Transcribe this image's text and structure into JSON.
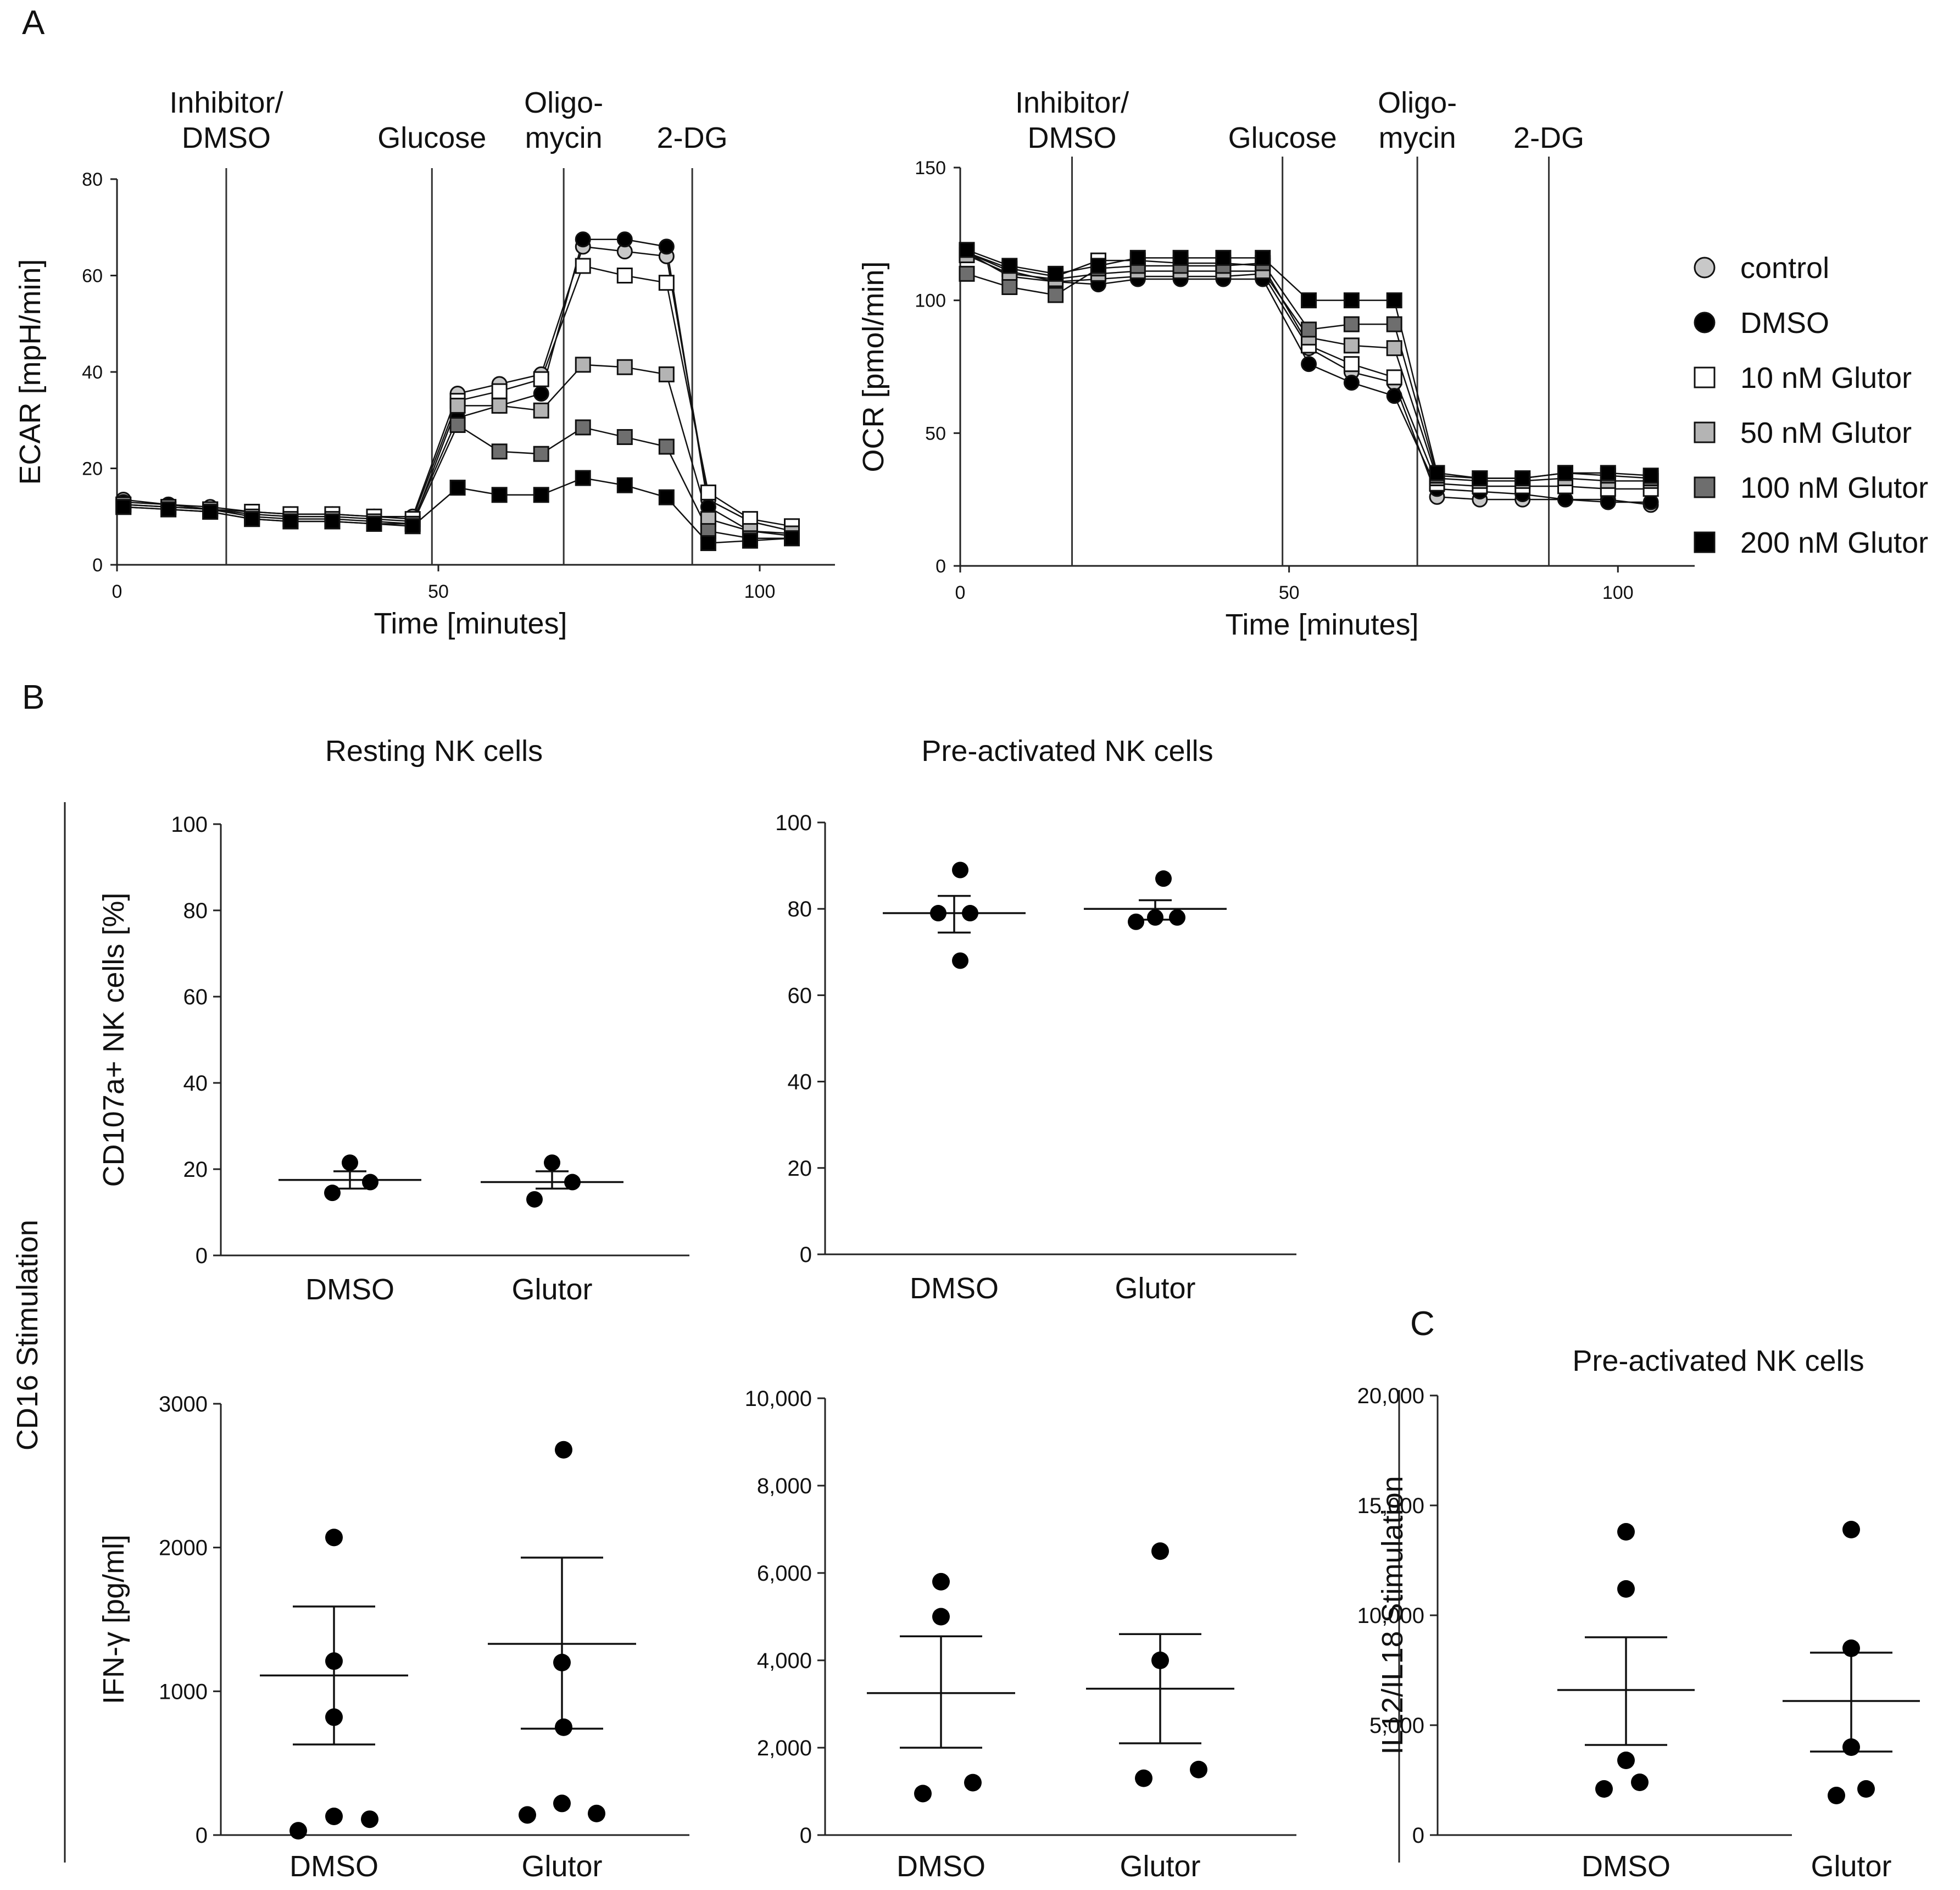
{
  "panel_labels": {
    "a": "A",
    "b": "B",
    "c": "C"
  },
  "side_labels": {
    "cd16": "CD16 Stimulation",
    "il12": "IL12/IL18 Stimulation"
  },
  "legend": [
    {
      "label": "control",
      "marker": "circle",
      "fill": "#c8c8c8"
    },
    {
      "label": "DMSO",
      "marker": "circle",
      "fill": "#000000"
    },
    {
      "label": "10 nM Glutor",
      "marker": "square",
      "fill": "#ffffff"
    },
    {
      "label": "50 nM Glutor",
      "marker": "square",
      "fill": "#b4b4b4"
    },
    {
      "label": "100 nM Glutor",
      "marker": "square",
      "fill": "#6e6e6e"
    },
    {
      "label": "200 nM Glutor",
      "marker": "square",
      "fill": "#000000"
    }
  ],
  "injections": [
    {
      "time": 17,
      "label": [
        "Inhibitor/",
        "DMSO"
      ]
    },
    {
      "time": 49,
      "label": [
        "Glucose"
      ]
    },
    {
      "time": 69.5,
      "label": [
        "Oligo-",
        "mycin"
      ]
    },
    {
      "time": 89.5,
      "label": [
        "2-DG"
      ]
    }
  ],
  "chart_data": [
    {
      "id": "ecar",
      "type": "line",
      "title": "",
      "xlabel": "Time [minutes]",
      "ylabel": "ECAR [mpH/min]",
      "xlim": [
        0,
        110
      ],
      "ylim": [
        0,
        80
      ],
      "xticks": [
        0,
        50,
        100
      ],
      "xtick_labels": [
        "0",
        "50",
        "100"
      ],
      "yticks": [
        0,
        20,
        40,
        60,
        80
      ],
      "ytick_labels": [
        "0",
        "20",
        "40",
        "60",
        "80"
      ],
      "x": [
        1,
        8,
        14.5,
        21,
        27,
        33.5,
        40,
        46,
        53,
        59.5,
        66,
        72.5,
        79,
        85.5,
        92,
        98.5,
        105
      ],
      "series": [
        {
          "name": "control",
          "values": [
            13.5,
            12.5,
            12,
            11,
            10.5,
            10.5,
            10,
            10,
            35.5,
            37.5,
            39.5,
            66,
            65,
            64,
            13.5,
            9,
            7
          ]
        },
        {
          "name": "DMSO",
          "values": [
            13,
            12.5,
            11.5,
            10.5,
            10,
            10,
            9.5,
            9,
            30.5,
            33,
            35.5,
            67.5,
            67.5,
            66,
            12,
            7,
            6
          ]
        },
        {
          "name": "10 nM Glutor",
          "values": [
            12.5,
            12,
            11.5,
            11,
            10.5,
            10.5,
            10,
            9.5,
            34,
            36,
            38.5,
            62,
            60,
            58.5,
            15,
            9.5,
            8
          ]
        },
        {
          "name": "50 nM Glutor",
          "values": [
            12.5,
            12,
            11.5,
            10,
            9.5,
            9.5,
            9,
            8.5,
            33,
            33,
            32,
            41.5,
            41,
            39.5,
            9.5,
            7,
            6.5
          ]
        },
        {
          "name": "100 nM Glutor",
          "values": [
            12,
            11.5,
            11,
            9.5,
            9,
            9,
            8.5,
            8.5,
            29,
            23.5,
            23,
            28.5,
            26.5,
            24.5,
            7,
            5.5,
            5.5
          ]
        },
        {
          "name": "200 nM Glutor",
          "values": [
            12,
            11.5,
            11,
            9.5,
            9,
            9,
            8.5,
            8,
            16,
            14.5,
            14.5,
            18,
            16.5,
            14,
            4.5,
            5,
            5.5
          ]
        }
      ]
    },
    {
      "id": "ocr",
      "type": "line",
      "title": "",
      "xlabel": "Time [minutes]",
      "ylabel": "OCR [pmol/min]",
      "xlim": [
        0,
        110
      ],
      "ylim": [
        0,
        150
      ],
      "xticks": [
        0,
        50,
        100
      ],
      "xtick_labels": [
        "0",
        "50",
        "100"
      ],
      "yticks": [
        0,
        50,
        100,
        150
      ],
      "ytick_labels": [
        "0",
        "50",
        "100",
        "150"
      ],
      "x": [
        1,
        7.5,
        14.5,
        21,
        27,
        33.5,
        40,
        46,
        53,
        59.5,
        66,
        72.5,
        79,
        85.5,
        92,
        98.5,
        105
      ],
      "series": [
        {
          "name": "control",
          "values": [
            118,
            109,
            107,
            108,
            109,
            109,
            109,
            110,
            82,
            73,
            69,
            26,
            25,
            25,
            25,
            25,
            23
          ]
        },
        {
          "name": "DMSO",
          "values": [
            118,
            111,
            107,
            106,
            108,
            108,
            108,
            108,
            76,
            69,
            64,
            29,
            28,
            27,
            25,
            24,
            24
          ]
        },
        {
          "name": "10 nM Glutor",
          "values": [
            118,
            112,
            109,
            115,
            115,
            114,
            114,
            113,
            83,
            76,
            71,
            31,
            30,
            30,
            30,
            29,
            29
          ]
        },
        {
          "name": "50 nM Glutor",
          "values": [
            117,
            110,
            108,
            110,
            111,
            111,
            111,
            111,
            86,
            83,
            82,
            33,
            32,
            32,
            33,
            32,
            32
          ]
        },
        {
          "name": "100 nM Glutor",
          "values": [
            110,
            105,
            102,
            112,
            113,
            113,
            113,
            114,
            89,
            91,
            91,
            34,
            33,
            33,
            35,
            34,
            33
          ]
        },
        {
          "name": "200 nM Glutor",
          "values": [
            119,
            113,
            110,
            113,
            116,
            116,
            116,
            116,
            100,
            100,
            100,
            35,
            33,
            33,
            35,
            35,
            34
          ]
        }
      ]
    },
    {
      "id": "b_resting_cd107a",
      "type": "scatter",
      "title": "Resting NK cells",
      "xlabel": "",
      "ylabel": "CD107a+ NK cells [%]",
      "ylim": [
        0,
        100
      ],
      "yticks": [
        0,
        20,
        40,
        60,
        80,
        100
      ],
      "ytick_labels": [
        "0",
        "20",
        "40",
        "60",
        "80",
        "100"
      ],
      "categories": [
        "DMSO",
        "Glutor"
      ],
      "points": [
        [
          21.5,
          14.5,
          17
        ],
        [
          21.5,
          13,
          17
        ]
      ],
      "mean": [
        17.5,
        17
      ],
      "sem": [
        [
          15.5,
          19.5
        ],
        [
          15.5,
          19.5
        ]
      ]
    },
    {
      "id": "b_preact_cd107a",
      "type": "scatter",
      "title": "Pre-activated NK cells",
      "xlabel": "",
      "ylabel": "",
      "ylim": [
        0,
        100
      ],
      "yticks": [
        0,
        20,
        40,
        60,
        80,
        100
      ],
      "ytick_labels": [
        "0",
        "20",
        "40",
        "60",
        "80",
        "100"
      ],
      "categories": [
        "DMSO",
        "Glutor"
      ],
      "points": [
        [
          89,
          79,
          79,
          68
        ],
        [
          87,
          77,
          78,
          78
        ]
      ],
      "mean": [
        79,
        80
      ],
      "sem": [
        [
          74.5,
          83
        ],
        [
          77.5,
          82
        ]
      ]
    },
    {
      "id": "b_resting_ifng",
      "type": "scatter",
      "title": "",
      "xlabel": "",
      "ylabel": "IFN-γ [pg/ml]",
      "ylim": [
        0,
        3000
      ],
      "yticks": [
        0,
        1000,
        2000,
        3000
      ],
      "ytick_labels": [
        "0",
        "1000",
        "2000",
        "3000"
      ],
      "categories": [
        "DMSO",
        "Glutor"
      ],
      "points": [
        [
          2070,
          1210,
          820,
          130,
          110,
          30
        ],
        [
          2680,
          1200,
          750,
          220,
          150,
          140
        ]
      ],
      "mean": [
        1110,
        1330
      ],
      "sem": [
        [
          630,
          1590
        ],
        [
          740,
          1930
        ]
      ]
    },
    {
      "id": "b_preact_ifng",
      "type": "scatter",
      "title": "",
      "xlabel": "",
      "ylabel": "",
      "ylim": [
        0,
        10000
      ],
      "yticks": [
        0,
        2000,
        4000,
        6000,
        8000,
        10000
      ],
      "ytick_labels": [
        "0",
        "2,000",
        "4,000",
        "6,000",
        "8,000",
        "10,000"
      ],
      "categories": [
        "DMSO",
        "Glutor"
      ],
      "points": [
        [
          5800,
          5000,
          1200,
          950
        ],
        [
          6500,
          4000,
          1500,
          1300
        ]
      ],
      "mean": [
        3250,
        3350
      ],
      "sem": [
        [
          2000,
          4550
        ],
        [
          2100,
          4600
        ]
      ]
    },
    {
      "id": "c_preact_il12",
      "type": "scatter",
      "title": "Pre-activated NK cells",
      "xlabel": "",
      "ylabel": "",
      "ylim": [
        0,
        20000
      ],
      "yticks": [
        0,
        5000,
        10000,
        15000,
        20000
      ],
      "ytick_labels": [
        "0",
        "5,000",
        "10,000",
        "15,000",
        "20,000"
      ],
      "categories": [
        "DMSO",
        "Glutor"
      ],
      "points": [
        [
          13800,
          11200,
          3400,
          2400,
          2100
        ],
        [
          13900,
          8500,
          4000,
          2100,
          1800
        ]
      ],
      "mean": [
        6600,
        6100
      ],
      "sem": [
        [
          4100,
          9000
        ],
        [
          3800,
          8300
        ]
      ]
    }
  ]
}
